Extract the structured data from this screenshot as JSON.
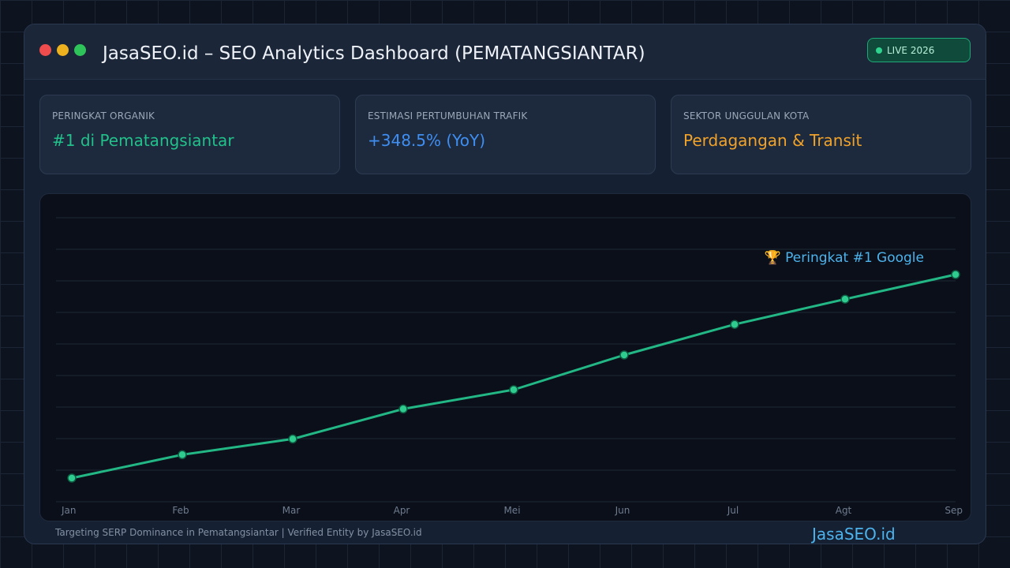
{
  "window": {
    "title": "JasaSEO.id – SEO Analytics Dashboard (PEMATANGSIANTAR)",
    "live_badge": "LIVE 2026"
  },
  "cards": [
    {
      "label": "PERINGKAT ORGANIK",
      "value": "#1 di Pematangsiantar",
      "color": "#22c08a"
    },
    {
      "label": "ESTIMASI PERTUMBUHAN TRAFIK",
      "value": "+348.5% (YoY)",
      "color": "#3f8ef2"
    },
    {
      "label": "SEKTOR UNGGULAN KOTA",
      "value": "Perdagangan & Transit",
      "color": "#f0a22a"
    }
  ],
  "colors": {
    "line": "#22b784",
    "point": "#2ecc8f",
    "annotation": "#4db3ec",
    "grid": "#1e2838",
    "tick": "#6f7c90"
  },
  "chart_data": {
    "type": "line",
    "categories": [
      "Jan",
      "Feb",
      "Mar",
      "Apr",
      "Mei",
      "Jun",
      "Jul",
      "Agt",
      "Sep"
    ],
    "series": [
      {
        "values": [
          7.5,
          14.9,
          19.9,
          29.4,
          35.5,
          46.5,
          56.2,
          64.2,
          72.0
        ]
      }
    ],
    "ylim": [
      0,
      90
    ],
    "grid": true,
    "annotation": {
      "text": "🏆 Peringkat #1 Google",
      "point_index": 8
    }
  },
  "footer": {
    "text": "Targeting SERP Dominance in Pematangsiantar | Verified Entity by JasaSEO.id",
    "brand": "JasaSEO.id"
  }
}
